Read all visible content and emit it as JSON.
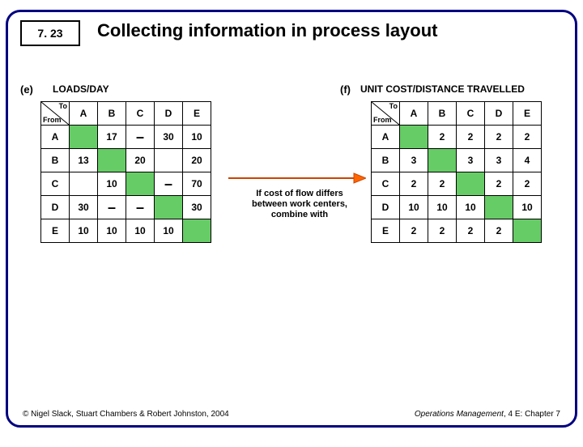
{
  "lecture_number": "7. 23",
  "title": "Collecting information in process layout",
  "label_e": "(e)",
  "label_e_title": "LOADS/DAY",
  "label_f": "(f)",
  "label_f_title": "UNIT COST/DISTANCE TRAVELLED",
  "corner_to": "To",
  "corner_from": "From",
  "headers": [
    "A",
    "B",
    "C",
    "D",
    "E"
  ],
  "note": "If cost of flow differs between work centers, combine with",
  "table_e": {
    "rows": [
      {
        "h": "A",
        "cells": [
          {
            "t": "diag"
          },
          {
            "v": "17"
          },
          {
            "t": "dash"
          },
          {
            "v": "30"
          },
          {
            "v": "10"
          }
        ]
      },
      {
        "h": "B",
        "cells": [
          {
            "v": "13"
          },
          {
            "t": "diag"
          },
          {
            "v": "20"
          },
          {
            "v": ""
          },
          {
            "v": "20"
          }
        ]
      },
      {
        "h": "C",
        "cells": [
          {
            "v": ""
          },
          {
            "v": "10"
          },
          {
            "t": "diag"
          },
          {
            "t": "dash"
          },
          {
            "v": "70"
          }
        ]
      },
      {
        "h": "D",
        "cells": [
          {
            "v": "30"
          },
          {
            "t": "dash"
          },
          {
            "t": "dash"
          },
          {
            "t": "diag"
          },
          {
            "v": "30"
          }
        ]
      },
      {
        "h": "E",
        "cells": [
          {
            "v": "10"
          },
          {
            "v": "10"
          },
          {
            "v": "10"
          },
          {
            "v": "10"
          },
          {
            "t": "diag"
          }
        ]
      }
    ]
  },
  "table_f": {
    "rows": [
      {
        "h": "A",
        "cells": [
          {
            "t": "diag"
          },
          {
            "v": "2"
          },
          {
            "v": "2"
          },
          {
            "v": "2"
          },
          {
            "v": "2"
          }
        ]
      },
      {
        "h": "B",
        "cells": [
          {
            "v": "3"
          },
          {
            "t": "diag"
          },
          {
            "v": "3"
          },
          {
            "v": "3"
          },
          {
            "v": "4"
          }
        ]
      },
      {
        "h": "C",
        "cells": [
          {
            "v": "2"
          },
          {
            "v": "2"
          },
          {
            "t": "diag"
          },
          {
            "v": "2"
          },
          {
            "v": "2"
          }
        ]
      },
      {
        "h": "D",
        "cells": [
          {
            "v": "10"
          },
          {
            "v": "10"
          },
          {
            "v": "10"
          },
          {
            "t": "diag"
          },
          {
            "v": "10"
          }
        ]
      },
      {
        "h": "E",
        "cells": [
          {
            "v": "2"
          },
          {
            "v": "2"
          },
          {
            "v": "2"
          },
          {
            "v": "2"
          },
          {
            "t": "diag"
          }
        ]
      }
    ]
  },
  "footer_left": "© Nigel Slack, Stuart Chambers & Robert Johnston, 2004",
  "footer_right_italic": "Operations Management",
  "footer_right_rest": ", 4 E: Chapter 7",
  "colors": {
    "border": "#000080",
    "diag_fill": "#66cc66",
    "arrow_stroke": "#cc4400",
    "arrow_fill": "#ff6600"
  }
}
